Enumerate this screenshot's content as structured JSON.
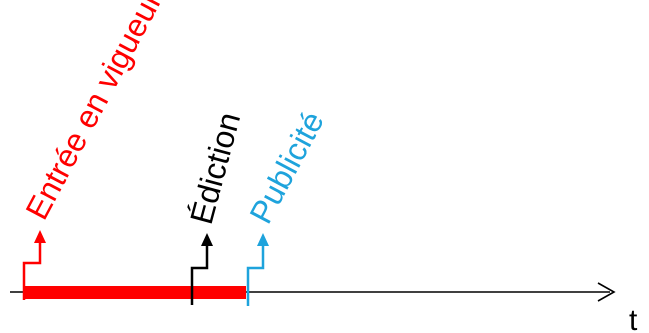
{
  "diagram": {
    "axis": {
      "label": "t"
    },
    "events": [
      {
        "id": "entree",
        "label": "Entrée en vigueur",
        "color": "#ff0000"
      },
      {
        "id": "edition",
        "label": "Édiction",
        "color": "#000000"
      },
      {
        "id": "publicite",
        "label": "Publicité",
        "color": "#1ea3dc"
      }
    ],
    "period_color": "#ff0000"
  }
}
